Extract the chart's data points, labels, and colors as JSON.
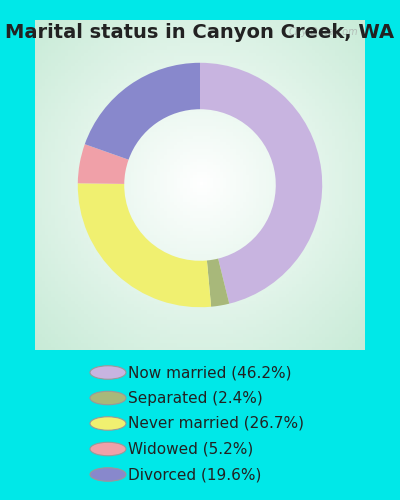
{
  "title": "Marital status in Canyon Creek, WA",
  "slices": [
    {
      "label": "Now married (46.2%)",
      "value": 46.2,
      "color": "#c8b4e0"
    },
    {
      "label": "Separated (2.4%)",
      "value": 2.4,
      "color": "#a8b87a"
    },
    {
      "label": "Never married (26.7%)",
      "value": 26.7,
      "color": "#f0f070"
    },
    {
      "label": "Widowed (5.2%)",
      "value": 5.2,
      "color": "#f0a0a8"
    },
    {
      "label": "Divorced (19.6%)",
      "value": 19.6,
      "color": "#8888cc"
    }
  ],
  "bg_color": "#00e8e8",
  "chart_bg_inner": "#e8f5e8",
  "title_fontsize": 14,
  "legend_fontsize": 11,
  "watermark": "City-Data.com"
}
